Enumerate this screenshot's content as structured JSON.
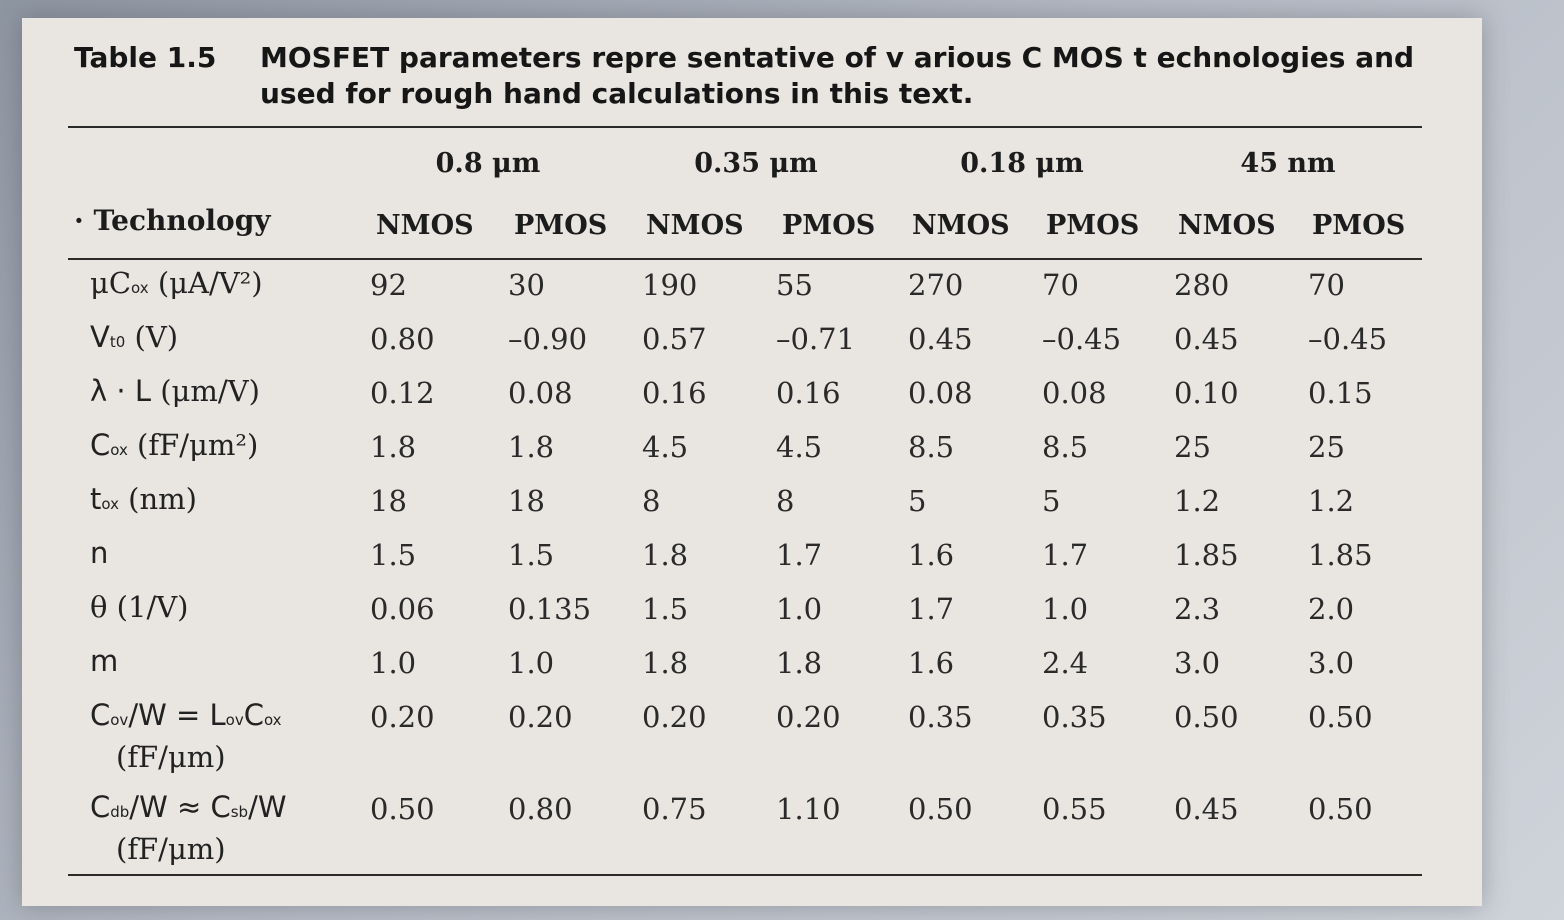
{
  "caption": {
    "number": "Table 1.5",
    "text": "MOSFET parameters repre sentative of v arious C MOS t echnologies and used for rough hand calculations in this text."
  },
  "header": {
    "technology_label": "Technology",
    "groups": [
      "0.8 μm",
      "0.35 μm",
      "0.18 μm",
      "45 nm"
    ],
    "columns": [
      "NMOS",
      "PMOS",
      "NMOS",
      "PMOS",
      "NMOS",
      "PMOS",
      "NMOS",
      "PMOS"
    ]
  },
  "rows": [
    {
      "label_main": "μC",
      "label_sub": "ox",
      "label_rest": " (μA/V²)",
      "unit": "",
      "values": [
        "92",
        "30",
        "190",
        "55",
        "270",
        "70",
        "280",
        "70"
      ]
    },
    {
      "label_main": "V",
      "label_sub": "t0",
      "label_rest": " (V)",
      "unit": "",
      "values": [
        "0.80",
        "–0.90",
        "0.57",
        "–0.71",
        "0.45",
        "–0.45",
        "0.45",
        "–0.45"
      ]
    },
    {
      "label_main": "λ · L",
      "label_sub": "",
      "label_rest": " (μm/V)",
      "unit": "",
      "values": [
        "0.12",
        "0.08",
        "0.16",
        "0.16",
        "0.08",
        "0.08",
        "0.10",
        "0.15"
      ]
    },
    {
      "label_main": "C",
      "label_sub": "ox",
      "label_rest": " (fF/μm²)",
      "unit": "",
      "values": [
        "1.8",
        "1.8",
        "4.5",
        "4.5",
        "8.5",
        "8.5",
        "25",
        "25"
      ]
    },
    {
      "label_main": "t",
      "label_sub": "ox",
      "label_rest": " (nm)",
      "unit": "",
      "values": [
        "18",
        "18",
        "8",
        "8",
        "5",
        "5",
        "1.2",
        "1.2"
      ]
    },
    {
      "label_main": "n",
      "label_sub": "",
      "label_rest": "",
      "unit": "",
      "values": [
        "1.5",
        "1.5",
        "1.8",
        "1.7",
        "1.6",
        "1.7",
        "1.85",
        "1.85"
      ]
    },
    {
      "label_main": "θ",
      "label_sub": "",
      "label_rest": " (1/V)",
      "unit": "",
      "values": [
        "0.06",
        "0.135",
        "1.5",
        "1.0",
        "1.7",
        "1.0",
        "2.3",
        "2.0"
      ]
    },
    {
      "label_main": "m",
      "label_sub": "",
      "label_rest": "",
      "unit": "",
      "values": [
        "1.0",
        "1.0",
        "1.8",
        "1.8",
        "1.6",
        "2.4",
        "3.0",
        "3.0"
      ]
    },
    {
      "label_main": "C",
      "label_sub": "ov",
      "label_rest": "/W = L",
      "label_sub2": "ov",
      "label_rest2": "C",
      "label_sub3": "ox",
      "unit": "(fF/μm)",
      "values": [
        "0.20",
        "0.20",
        "0.20",
        "0.20",
        "0.35",
        "0.35",
        "0.50",
        "0.50"
      ]
    },
    {
      "label_main": "C",
      "label_sub": "db",
      "label_rest": "/W ≈ C",
      "label_sub2": "sb",
      "label_rest2": "/W",
      "label_sub3": "",
      "unit": "(fF/μm)",
      "values": [
        "0.50",
        "0.80",
        "0.75",
        "1.10",
        "0.50",
        "0.55",
        "0.45",
        "0.50"
      ]
    }
  ]
}
